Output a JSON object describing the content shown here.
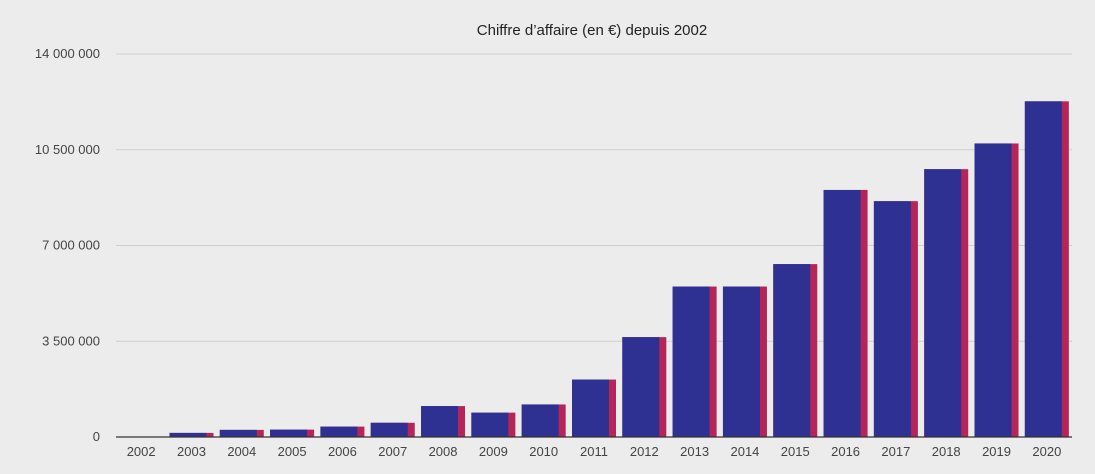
{
  "chart_data": {
    "type": "bar",
    "title": "Chiffre d’affaire (en €) depuis 2002",
    "xlabel": "",
    "ylabel": "",
    "ylim": [
      0,
      14000000
    ],
    "y_ticks": [
      0,
      3500000,
      7000000,
      10500000,
      14000000
    ],
    "y_tick_labels": [
      "0",
      "3 500 000",
      "7 000 000",
      "10 500 000",
      "14 000 000"
    ],
    "grid": true,
    "legend": "none",
    "categories": [
      "2002",
      "2003",
      "2004",
      "2005",
      "2006",
      "2007",
      "2008",
      "2009",
      "2010",
      "2011",
      "2012",
      "2013",
      "2014",
      "2015",
      "2016",
      "2017",
      "2018",
      "2019",
      "2020"
    ],
    "series": [
      {
        "values": [
          0,
          150000,
          260000,
          270000,
          380000,
          520000,
          1130000,
          890000,
          1190000,
          2100000,
          3650000,
          5500000,
          5500000,
          6320000,
          9030000,
          8620000,
          9790000,
          10730000,
          12270000
        ]
      },
      {
        "values": [
          0,
          150000,
          260000,
          270000,
          380000,
          520000,
          1130000,
          890000,
          1190000,
          2100000,
          3650000,
          5500000,
          5500000,
          6320000,
          9030000,
          8620000,
          9790000,
          10730000,
          12270000
        ]
      }
    ],
    "colors": {
      "series_1": "#2e3192",
      "series_2": "#b5255a",
      "background": "#ececec",
      "grid": "#cfcfcf",
      "axis": "#333333"
    }
  }
}
